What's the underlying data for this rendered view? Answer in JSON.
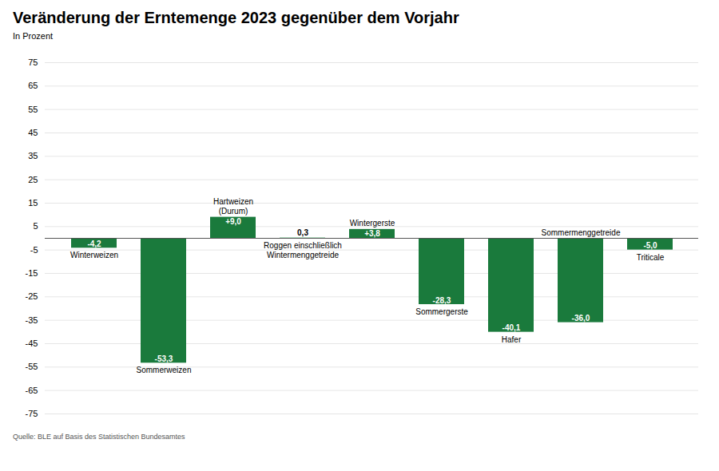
{
  "chart_data": {
    "type": "bar",
    "title": "Veränderung der Erntemenge 2023 gegenüber dem Vorjahr",
    "subtitle": "In Prozent",
    "source": "Quelle: BLE auf Basis des Statistischen Bundesamtes",
    "categories": [
      "Winterweizen",
      "Sommerweizen",
      "Hartweizen\n(Durum)",
      "Roggen einschließlich\nWintermenggetreide",
      "Wintergerste",
      "Sommergerste",
      "Hafer",
      "Sommermenggetreide",
      "Triticale"
    ],
    "values": [
      -4.2,
      -53.3,
      9.0,
      0.3,
      3.8,
      -28.3,
      -40.1,
      -36.0,
      -5.0
    ],
    "value_labels": [
      "-4,2",
      "-53,3",
      "+9,0",
      "0,3",
      "+3,8",
      "-28,3",
      "-40,1",
      "-36,0",
      "-5,0"
    ],
    "data_labels": true,
    "colors": [
      "#1a7a3c",
      "#1a7a3c",
      "#1a7a3c",
      "#a8d5b5",
      "#1a7a3c",
      "#1a7a3c",
      "#1a7a3c",
      "#1a7a3c",
      "#1a7a3c"
    ],
    "ylim": [
      -75,
      75
    ],
    "yticks": [
      -75,
      -65,
      -55,
      -45,
      -35,
      -25,
      -15,
      -5,
      5,
      15,
      25,
      35,
      45,
      55,
      65,
      75
    ],
    "grid": true,
    "tick_labels": "y"
  }
}
